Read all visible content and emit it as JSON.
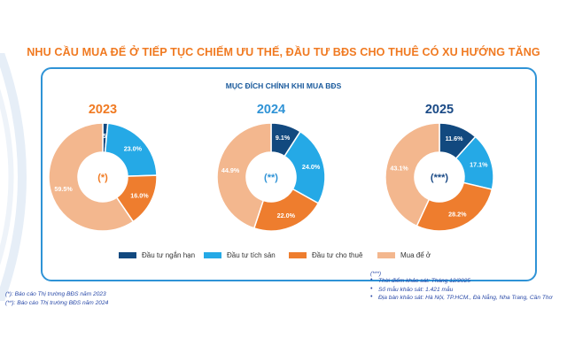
{
  "header": {
    "title": "NHU CẦU MUA ĐỂ Ở TIẾP TỤC CHIẾM ƯU THẾ, ĐẦU TƯ BĐS CHO THUÊ CÓ XU HƯỚNG TĂNG"
  },
  "colors": {
    "accent_orange": "#f07a22",
    "border_blue": "#2f93d6",
    "year_2023": "#f07a22",
    "year_2024": "#2f93d6",
    "year_2025": "#1a4a86"
  },
  "chart_data": {
    "type": "pie",
    "title": "MỤC ĐÍCH CHÍNH KHI MUA BĐS",
    "categories": [
      "Đầu tư ngắn hạn",
      "Đầu tư tích sản",
      "Đầu tư cho thuê",
      "Mua để ở"
    ],
    "colors": [
      "#12497f",
      "#25a9e6",
      "#ee7d2e",
      "#f3b78e"
    ],
    "legend_position": "bottom",
    "charts": [
      {
        "year": "2023",
        "center": "(*)",
        "values": [
          1.5,
          23.0,
          16.0,
          59.5
        ],
        "labels": [
          "1.5%",
          "23.0%",
          "16.0%",
          "59.5%"
        ]
      },
      {
        "year": "2024",
        "center": "(**)",
        "values": [
          9.1,
          24.0,
          22.0,
          44.9
        ],
        "labels": [
          "9.1%",
          "24.0%",
          "22.0%",
          "44.9%"
        ]
      },
      {
        "year": "2025",
        "center": "(***)",
        "values": [
          11.6,
          17.1,
          28.2,
          43.1
        ],
        "labels": [
          "11.6%",
          "17.1%",
          "28.2%",
          "43.1%"
        ]
      }
    ]
  },
  "notes": {
    "left_1": "(*): Báo cáo Thị trường BĐS năm 2023",
    "left_2": "(**): Báo cáo Thị trường BĐS năm 2024",
    "right_head": "(***)",
    "right_1": "Thời điểm khảo sát: Tháng 12/2025",
    "right_2": "Số mẫu khảo sát: 1.421 mẫu",
    "right_3": "Địa bàn khảo sát: Hà Nội, TP.HCM., Đà Nẵng, Nha Trang, Cần Thơ"
  }
}
